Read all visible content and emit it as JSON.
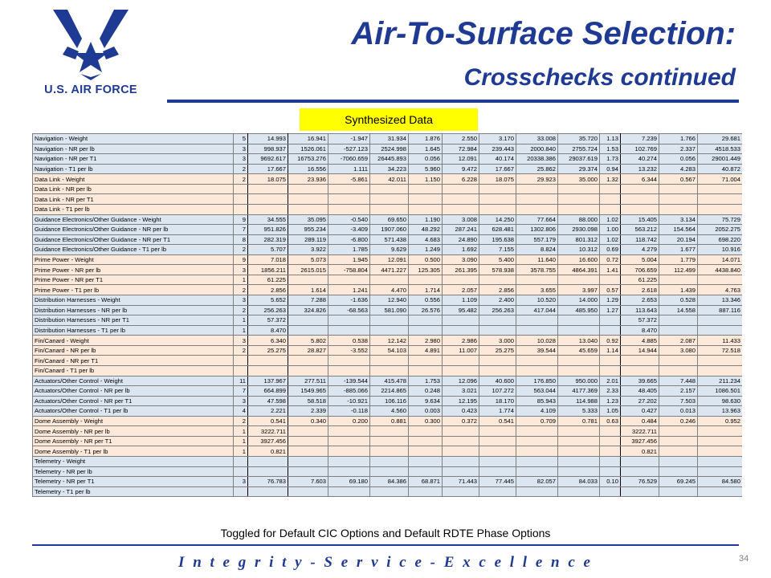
{
  "logo": {
    "text": "U.S. AIR FORCE",
    "icon": "air-force-wings-icon"
  },
  "title": {
    "line1": "Air-To-Surface Selection:",
    "line2": "Crosschecks continued"
  },
  "banner": "Synthesized Data",
  "table": {
    "rows": [
      {
        "label": "Navigation - Weight",
        "group": "blue",
        "count": "5",
        "cells": [
          "14.993",
          "16.941",
          "-1.947",
          "31.934",
          "1.876",
          "2.550",
          "3.170",
          "33.008",
          "35.720",
          "1.13",
          "7.239",
          "1.766",
          "29.681"
        ]
      },
      {
        "label": "Navigation - NR per lb",
        "group": "blue",
        "count": "3",
        "cells": [
          "998.937",
          "1526.061",
          "-527.123",
          "2524.998",
          "1.645",
          "72.984",
          "239.443",
          "2000.840",
          "2755.724",
          "1.53",
          "102.769",
          "2.337",
          "4518.533"
        ]
      },
      {
        "label": "Navigation - NR per T1",
        "group": "blue",
        "count": "3",
        "cells": [
          "9692.617",
          "16753.276",
          "-7060.659",
          "26445.893",
          "0.056",
          "12.091",
          "40.174",
          "20338.386",
          "29037.619",
          "1.73",
          "40.274",
          "0.056",
          "29001.449"
        ]
      },
      {
        "label": "Navigation - T1 per lb",
        "group": "blue",
        "count": "2",
        "cells": [
          "17.667",
          "16.556",
          "1.111",
          "34.223",
          "5.960",
          "9.472",
          "17.667",
          "25.862",
          "29.374",
          "0.94",
          "13.232",
          "4.283",
          "40.872"
        ]
      },
      {
        "label": "Data Link - Weight",
        "group": "peach",
        "count": "2",
        "cells": [
          "18.075",
          "23.936",
          "-5.861",
          "42.011",
          "1.150",
          "6.228",
          "18.075",
          "29.923",
          "35.000",
          "1.32",
          "6.344",
          "0.567",
          "71.004"
        ]
      },
      {
        "label": "Data Link - NR per lb",
        "group": "peach",
        "count": "",
        "cells": [
          "",
          "",
          "",
          "",
          "",
          "",
          "",
          "",
          "",
          "",
          "",
          "",
          ""
        ]
      },
      {
        "label": "Data Link - NR per T1",
        "group": "peach",
        "count": "",
        "cells": [
          "",
          "",
          "",
          "",
          "",
          "",
          "",
          "",
          "",
          "",
          "",
          "",
          ""
        ]
      },
      {
        "label": "Data Link - T1 per lb",
        "group": "peach",
        "count": "",
        "cells": [
          "",
          "",
          "",
          "",
          "",
          "",
          "",
          "",
          "",
          "",
          "",
          "",
          ""
        ]
      },
      {
        "label": "Guidance Electronics/Other Guidance - Weight",
        "group": "blue",
        "count": "9",
        "cells": [
          "34.555",
          "35.095",
          "-0.540",
          "69.650",
          "1.190",
          "3.008",
          "14.250",
          "77.664",
          "88.000",
          "1.02",
          "15.405",
          "3.134",
          "75.729"
        ]
      },
      {
        "label": "Guidance Electronics/Other Guidance - NR per lb",
        "group": "blue",
        "count": "7",
        "cells": [
          "951.826",
          "955.234",
          "-3.409",
          "1907.060",
          "48.292",
          "287.241",
          "628.481",
          "1302.806",
          "2930.098",
          "1.00",
          "563.212",
          "154.564",
          "2052.275"
        ]
      },
      {
        "label": "Guidance Electronics/Other Guidance - NR per T1",
        "group": "blue",
        "count": "8",
        "cells": [
          "282.319",
          "289.119",
          "-6.800",
          "571.438",
          "4.683",
          "24.890",
          "195.638",
          "557.179",
          "801.312",
          "1.02",
          "118.742",
          "20.194",
          "698.220"
        ]
      },
      {
        "label": "Guidance Electronics/Other Guidance - T1 per lb",
        "group": "blue",
        "count": "2",
        "cells": [
          "5.707",
          "3.922",
          "1.785",
          "9.629",
          "1.249",
          "1.692",
          "7.155",
          "8.824",
          "10.312",
          "0.69",
          "4.279",
          "1.677",
          "10.916"
        ]
      },
      {
        "label": "Prime Power - Weight",
        "group": "peach",
        "count": "9",
        "cells": [
          "7.018",
          "5.073",
          "1.945",
          "12.091",
          "0.500",
          "3.090",
          "5.400",
          "11.640",
          "16.600",
          "0.72",
          "5.004",
          "1.779",
          "14.071"
        ]
      },
      {
        "label": "Prime Power - NR per lb",
        "group": "peach",
        "count": "3",
        "cells": [
          "1856.211",
          "2615.015",
          "-758.804",
          "4471.227",
          "125.305",
          "261.395",
          "578.938",
          "3578.755",
          "4864.391",
          "1.41",
          "706.659",
          "112.499",
          "4438.840"
        ]
      },
      {
        "label": "Prime Power - NR per T1",
        "group": "peach",
        "count": "1",
        "cells": [
          "61.225",
          "",
          "",
          "",
          "",
          "",
          "",
          "",
          "",
          "",
          "61.225",
          "",
          ""
        ]
      },
      {
        "label": "Prime Power - T1 per lb",
        "group": "peach",
        "count": "2",
        "cells": [
          "2.856",
          "1.614",
          "1.241",
          "4.470",
          "1.714",
          "2.057",
          "2.856",
          "3.655",
          "3.997",
          "0.57",
          "2.618",
          "1.439",
          "4.763"
        ]
      },
      {
        "label": "Distribution Harnesses - Weight",
        "group": "blue",
        "count": "3",
        "cells": [
          "5.652",
          "7.288",
          "-1.636",
          "12.940",
          "0.556",
          "1.109",
          "2.400",
          "10.520",
          "14.000",
          "1.29",
          "2.653",
          "0.528",
          "13.346"
        ]
      },
      {
        "label": "Distribution Harnesses - NR per lb",
        "group": "blue",
        "count": "2",
        "cells": [
          "256.263",
          "324.826",
          "-68.563",
          "581.090",
          "26.576",
          "95.482",
          "256.263",
          "417.044",
          "485.950",
          "1.27",
          "113.643",
          "14.558",
          "887.116"
        ]
      },
      {
        "label": "Distribution Harnesses - NR per T1",
        "group": "blue",
        "count": "1",
        "cells": [
          "57.372",
          "",
          "",
          "",
          "",
          "",
          "",
          "",
          "",
          "",
          "57.372",
          "",
          ""
        ]
      },
      {
        "label": "Distribution Harnesses - T1 per lb",
        "group": "blue",
        "count": "1",
        "cells": [
          "8.470",
          "",
          "",
          "",
          "",
          "",
          "",
          "",
          "",
          "",
          "8.470",
          "",
          ""
        ]
      },
      {
        "label": "Fin/Canard - Weight",
        "group": "peach",
        "count": "3",
        "cells": [
          "6.340",
          "5.802",
          "0.538",
          "12.142",
          "2.980",
          "2.986",
          "3.000",
          "10.028",
          "13.040",
          "0.92",
          "4.885",
          "2.087",
          "11.433"
        ]
      },
      {
        "label": "Fin/Canard - NR per lb",
        "group": "peach",
        "count": "2",
        "cells": [
          "25.275",
          "28.827",
          "-3.552",
          "54.103",
          "4.891",
          "11.007",
          "25.275",
          "39.544",
          "45.659",
          "1.14",
          "14.944",
          "3.080",
          "72.518"
        ]
      },
      {
        "label": "Fin/Canard - NR per T1",
        "group": "peach",
        "count": "",
        "cells": [
          "",
          "",
          "",
          "",
          "",
          "",
          "",
          "",
          "",
          "",
          "",
          "",
          ""
        ]
      },
      {
        "label": "Fin/Canard - T1 per lb",
        "group": "peach",
        "count": "",
        "cells": [
          "",
          "",
          "",
          "",
          "",
          "",
          "",
          "",
          "",
          "",
          "",
          "",
          ""
        ]
      },
      {
        "label": "Actuators/Other Control - Weight",
        "group": "blue",
        "count": "11",
        "cells": [
          "137.967",
          "277.511",
          "-139.544",
          "415.478",
          "1.753",
          "12.096",
          "40.600",
          "176.850",
          "950.000",
          "2.01",
          "39.665",
          "7.448",
          "211.234"
        ]
      },
      {
        "label": "Actuators/Other Control - NR per lb",
        "group": "blue",
        "count": "7",
        "cells": [
          "664.899",
          "1549.965",
          "-885.066",
          "2214.865",
          "0.248",
          "3.021",
          "107.272",
          "563.044",
          "4177.369",
          "2.33",
          "48.405",
          "2.157",
          "1086.501"
        ]
      },
      {
        "label": "Actuators/Other Control - NR per T1",
        "group": "blue",
        "count": "3",
        "cells": [
          "47.598",
          "58.518",
          "-10.921",
          "106.116",
          "9.634",
          "12.195",
          "18.170",
          "85.943",
          "114.988",
          "1.23",
          "27.202",
          "7.503",
          "98.630"
        ]
      },
      {
        "label": "Actuators/Other Control - T1 per lb",
        "group": "blue",
        "count": "4",
        "cells": [
          "2.221",
          "2.339",
          "-0.118",
          "4.560",
          "0.003",
          "0.423",
          "1.774",
          "4.109",
          "5.333",
          "1.05",
          "0.427",
          "0.013",
          "13.963"
        ]
      },
      {
        "label": "Dome Assembly - Weight",
        "group": "peach",
        "count": "2",
        "cells": [
          "0.541",
          "0.340",
          "0.200",
          "0.881",
          "0.300",
          "0.372",
          "0.541",
          "0.709",
          "0.781",
          "0.63",
          "0.484",
          "0.246",
          "0.952"
        ]
      },
      {
        "label": "Dome Assembly - NR per lb",
        "group": "peach",
        "count": "1",
        "cells": [
          "3222.711",
          "",
          "",
          "",
          "",
          "",
          "",
          "",
          "",
          "",
          "3222.711",
          "",
          ""
        ]
      },
      {
        "label": "Dome Assembly - NR per T1",
        "group": "peach",
        "count": "1",
        "cells": [
          "3927.456",
          "",
          "",
          "",
          "",
          "",
          "",
          "",
          "",
          "",
          "3927.456",
          "",
          ""
        ]
      },
      {
        "label": "Dome Assembly - T1 per lb",
        "group": "peach",
        "count": "1",
        "cells": [
          "0.821",
          "",
          "",
          "",
          "",
          "",
          "",
          "",
          "",
          "",
          "0.821",
          "",
          ""
        ]
      },
      {
        "label": "Telemetry - Weight",
        "group": "blue",
        "count": "",
        "cells": [
          "",
          "",
          "",
          "",
          "",
          "",
          "",
          "",
          "",
          "",
          "",
          "",
          ""
        ]
      },
      {
        "label": "Telemetry - NR per lb",
        "group": "blue",
        "count": "",
        "cells": [
          "",
          "",
          "",
          "",
          "",
          "",
          "",
          "",
          "",
          "",
          "",
          "",
          ""
        ]
      },
      {
        "label": "Telemetry - NR per T1",
        "group": "blue",
        "count": "3",
        "cells": [
          "76.783",
          "7.603",
          "69.180",
          "84.386",
          "68.871",
          "71.443",
          "77.445",
          "82.057",
          "84.033",
          "0.10",
          "76.529",
          "69.245",
          "84.580"
        ]
      },
      {
        "label": "Telemetry - T1 per lb",
        "group": "blue",
        "count": "",
        "cells": [
          "",
          "",
          "",
          "",
          "",
          "",
          "",
          "",
          "",
          "",
          "",
          "",
          ""
        ]
      }
    ]
  },
  "footnote": "Toggled for Default CIC Options and Default RDTE Phase Options",
  "motto": "I n t e g r i t y  -  S e r v i c e  -  E x c e l l e n c e",
  "page_number": "34"
}
